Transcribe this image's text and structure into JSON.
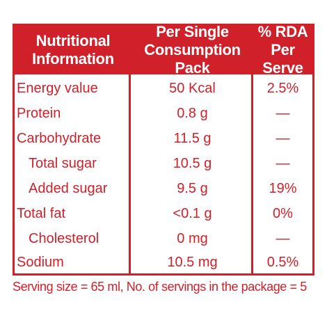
{
  "colors": {
    "accent": "#d0202a",
    "background": "#ffffff"
  },
  "table": {
    "headers": [
      "Nutritional\nInformation",
      "Per Single\nConsumption Pack",
      "% RDA\nPer Serve"
    ],
    "rows": [
      {
        "name": "Energy value",
        "value": "50 Kcal",
        "rda": "2.5%",
        "indent": false
      },
      {
        "name": "Protein",
        "value": "0.8 g",
        "rda": "—",
        "indent": false
      },
      {
        "name": "Carbohydrate",
        "value": "11.5 g",
        "rda": "—",
        "indent": false
      },
      {
        "name": "Total sugar",
        "value": "10.5 g",
        "rda": "—",
        "indent": true
      },
      {
        "name": "Added sugar",
        "value": "9.5 g",
        "rda": "19%",
        "indent": true
      },
      {
        "name": "Total fat",
        "value": "<0.1 g",
        "rda": "0%",
        "indent": false
      },
      {
        "name": "Cholesterol",
        "value": "0 mg",
        "rda": "—",
        "indent": true
      },
      {
        "name": "Sodium",
        "value": "10.5 mg",
        "rda": "0.5%",
        "indent": false
      }
    ]
  },
  "footer": "Serving size = 65 ml, No. of servings in the package = 5"
}
